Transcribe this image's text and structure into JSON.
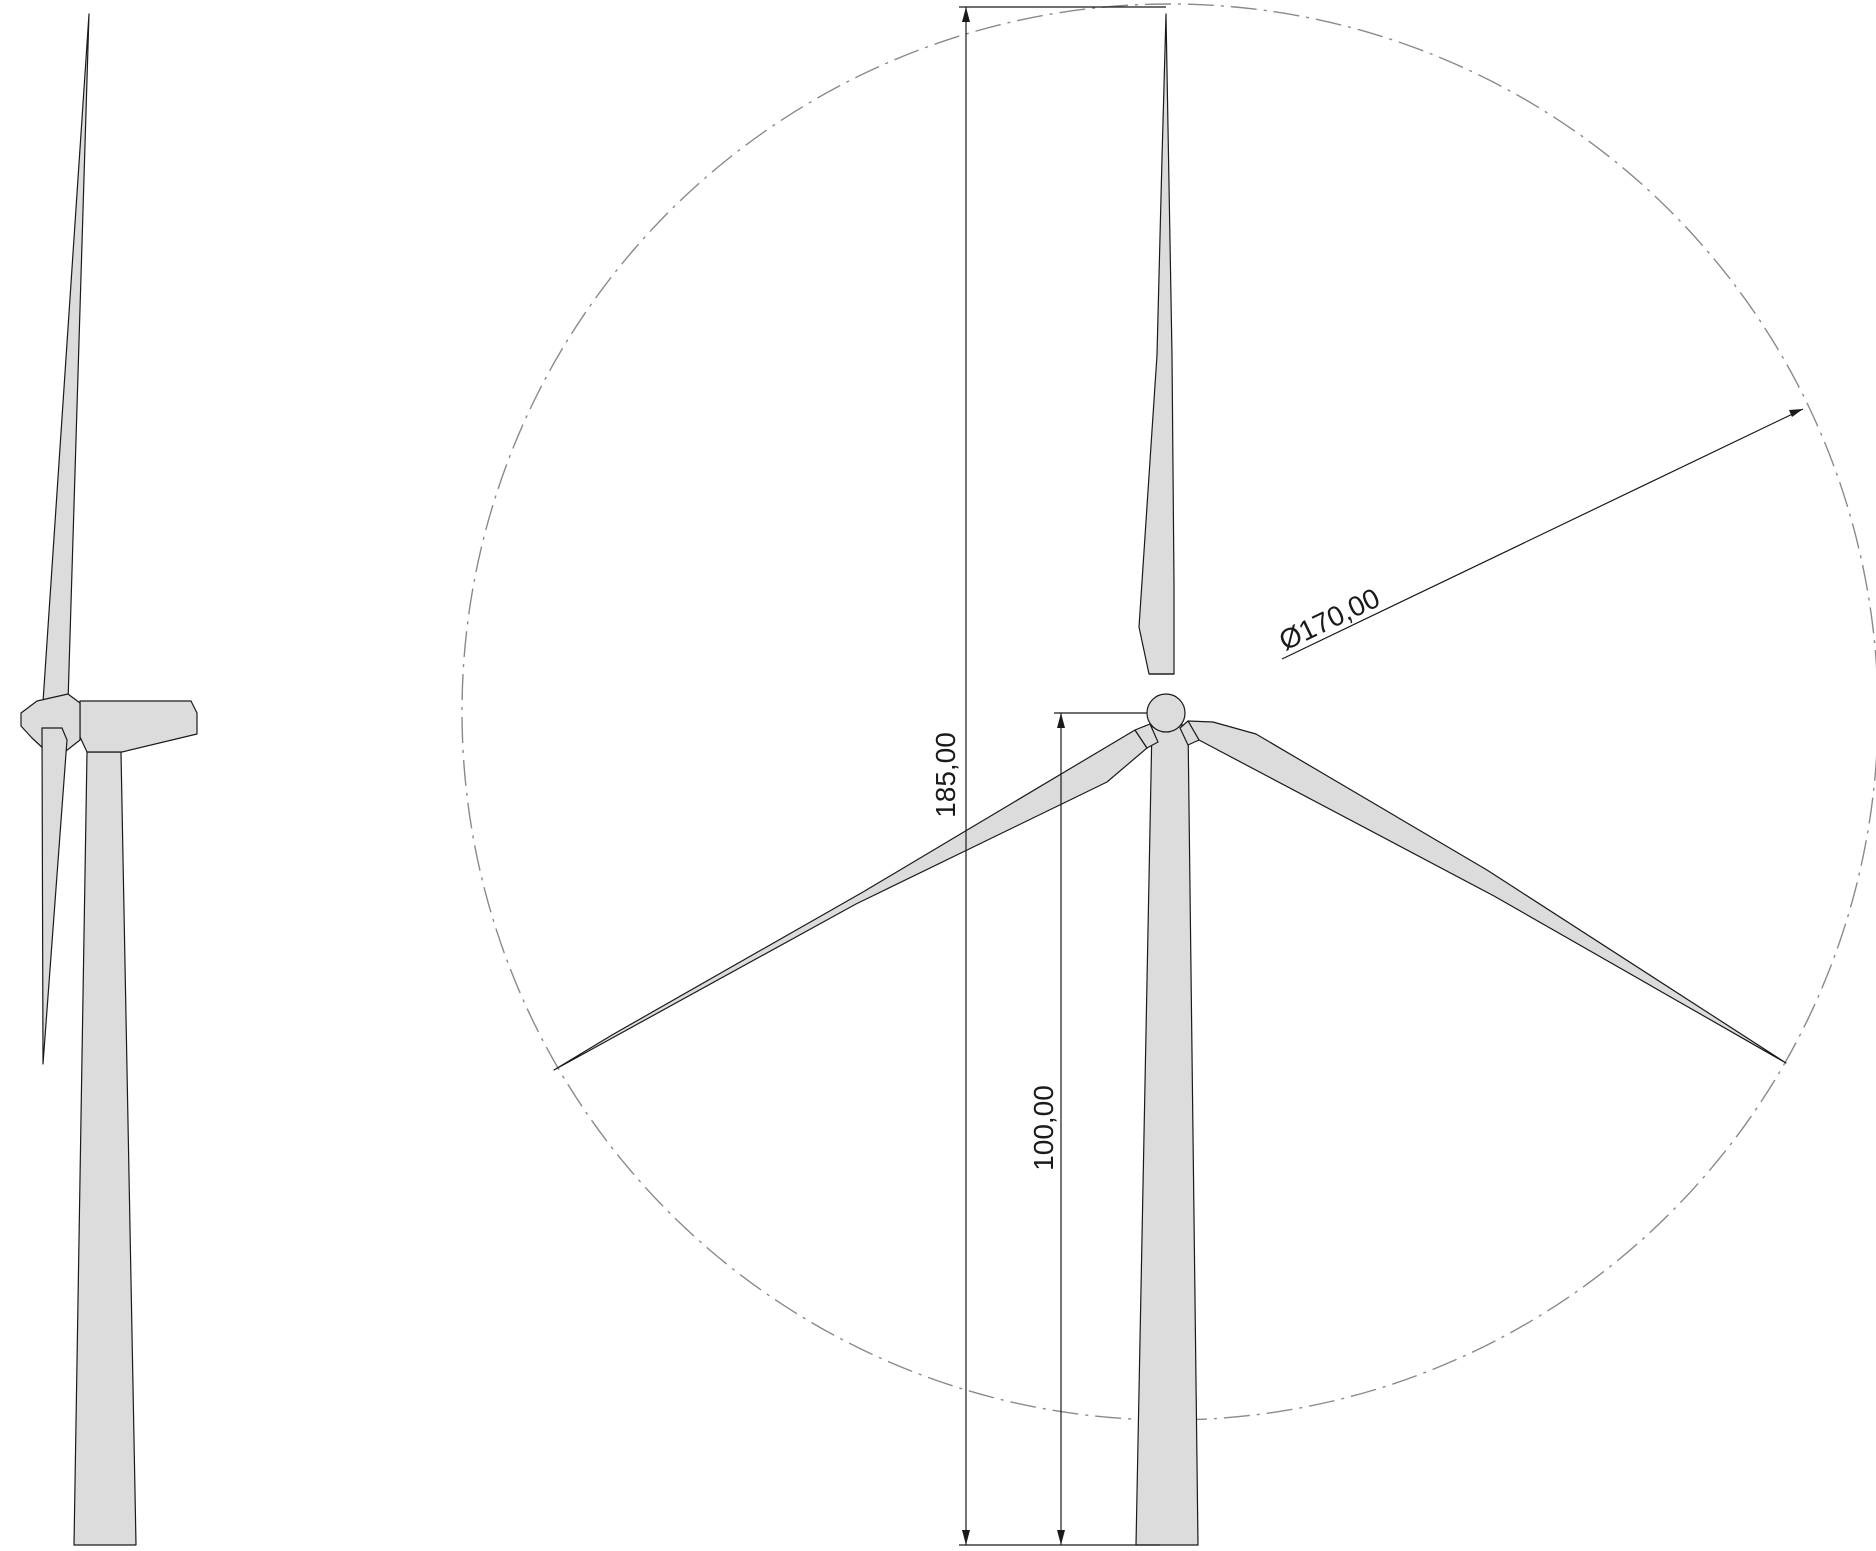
{
  "dimensions": {
    "total_height": "185,00",
    "hub_height": "100,00",
    "rotor_diameter": "Ø170,00"
  },
  "views": [
    {
      "name": "side-view",
      "icon": "wind-turbine-side-icon"
    },
    {
      "name": "front-view",
      "icon": "wind-turbine-front-icon"
    }
  ],
  "colors": {
    "fill": "#dcdcdc",
    "line": "#1a1a1a",
    "centerline": "#8a8a8a"
  }
}
